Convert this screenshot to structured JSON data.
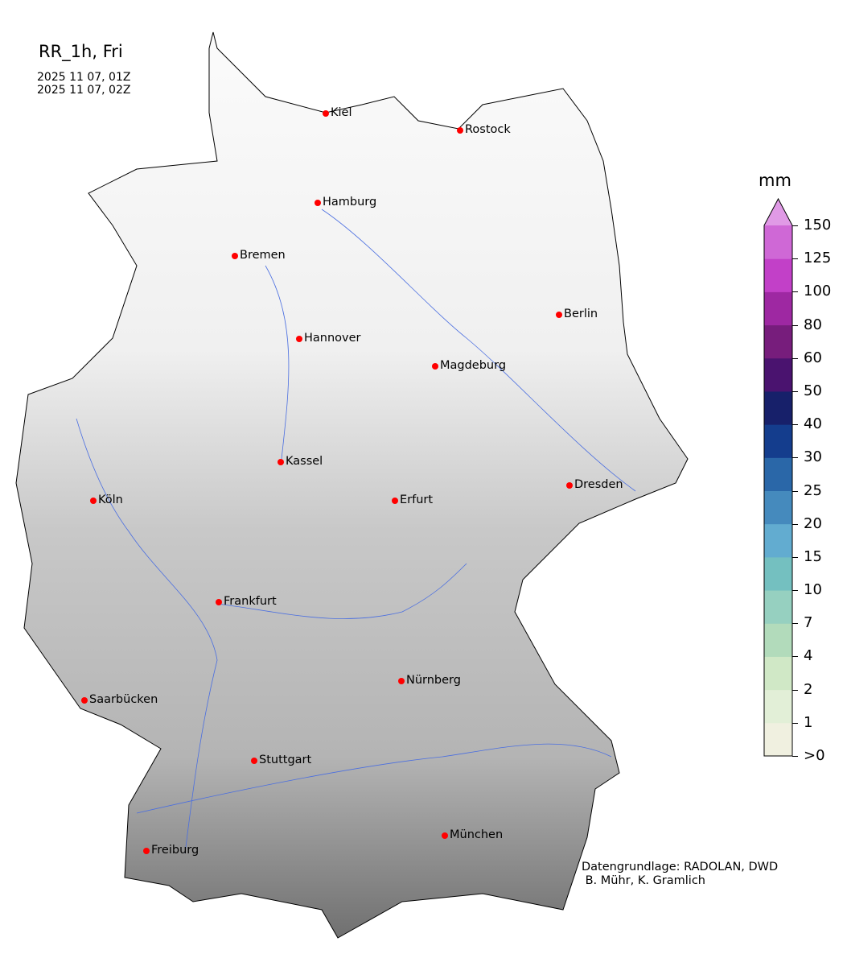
{
  "title": "RR_1h, Fri",
  "time_start": "2025 11 07, 01Z",
  "time_end": "2025 11 07, 02Z",
  "colorbar": {
    "unit": "mm",
    "ticks": [
      ">0",
      "1",
      "2",
      "4",
      "7",
      "10",
      "15",
      "20",
      "25",
      "30",
      "40",
      "50",
      "60",
      "80",
      "100",
      "125",
      "150"
    ],
    "colors": [
      "#f0f0e0",
      "#e2efd7",
      "#d0e8c6",
      "#b2dbbb",
      "#96d0c0",
      "#74c0c0",
      "#62acd0",
      "#458abd",
      "#2a67a8",
      "#143d8d",
      "#17206a",
      "#4a136f",
      "#771d7c",
      "#9e28a2",
      "#c240c8",
      "#cf68d6"
    ],
    "extend_color": "#e09ae6"
  },
  "cities": [
    "Kiel",
    "Rostock",
    "Hamburg",
    "Bremen",
    "Berlin",
    "Hannover",
    "Magdeburg",
    "Kassel",
    "Köln",
    "Erfurt",
    "Dresden",
    "Frankfurt",
    "Nürnberg",
    "Saarbücken",
    "Stuttgart",
    "München",
    "Freiburg"
  ],
  "credit": "Datengrundlage: RADOLAN, DWD\n B. Mühr, K. Gramlich",
  "colors": {
    "city_marker": "#ff0000",
    "rivers": "#4a6ee0",
    "relief": "grayscale"
  }
}
